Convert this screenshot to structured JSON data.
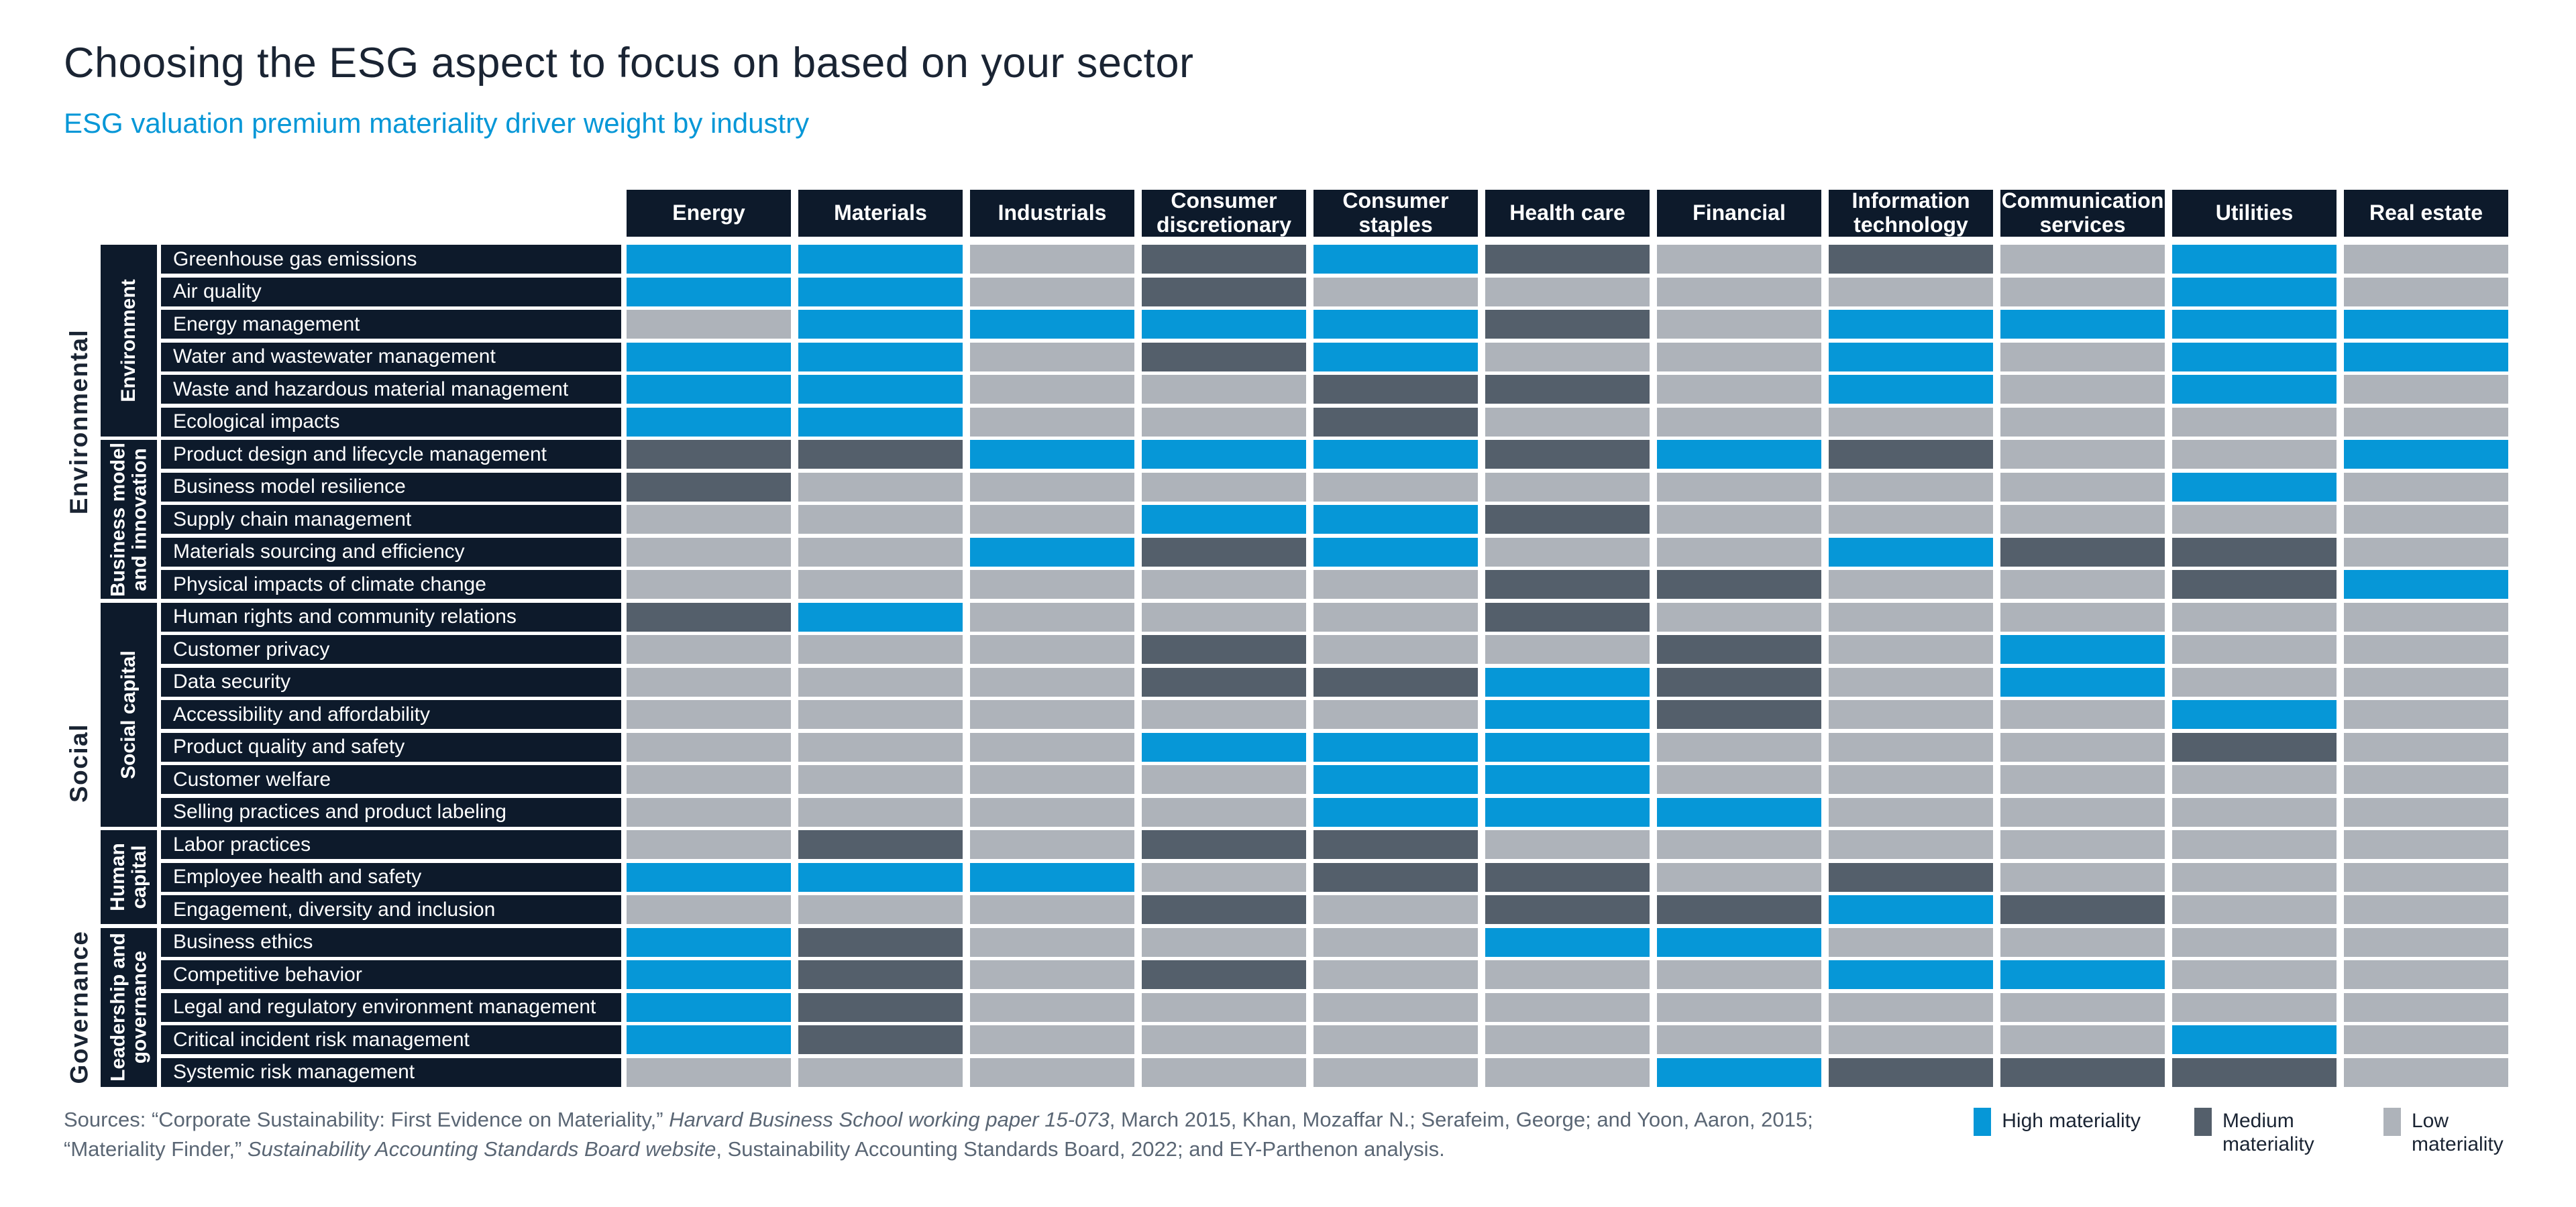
{
  "header": {
    "title": "Choosing the ESG aspect to focus on based on your sector",
    "subtitle": "ESG valuation premium materiality driver weight by industry"
  },
  "colors": {
    "high_materiality": "#0697d7",
    "medium_materiality": "#545f6b",
    "low_materiality": "#aeb3ba",
    "header_navy": "#0d1a2b",
    "title_text": "#1a2433",
    "subtitle_text": "#0697d7",
    "source_text": "#5a6674"
  },
  "legend": [
    {
      "label": "High materiality",
      "level": "high"
    },
    {
      "label": "Medium materiality",
      "level": "medium"
    },
    {
      "label": "Low materiality",
      "level": "low"
    }
  ],
  "sources": {
    "segments": [
      {
        "text": "Sources: “Corporate Sustainability: First Evidence on Materiality,” "
      },
      {
        "text": "Harvard Business School working paper 15-073",
        "italic": true
      },
      {
        "text": ", March 2015, Khan, Mozaffar N.; Serafeim, George; and Yoon, Aaron, 2015; “Materiality Finder,” "
      },
      {
        "text": "Sustainability Accounting Standards Board website",
        "italic": true
      },
      {
        "text": ", Sustainability Accounting Standards Board, 2022; and EY-Parthenon analysis."
      }
    ]
  },
  "chart_data": {
    "type": "heatmap",
    "title": "Choosing the ESG aspect to focus on based on your sector",
    "subtitle": "ESG valuation premium materiality driver weight by industry",
    "legend_levels": {
      "H": "High materiality",
      "M": "Medium materiality",
      "L": "Low materiality"
    },
    "legend_position": "bottom-right",
    "columns": [
      "Energy",
      "Materials",
      "Industrials",
      "Consumer discretionary",
      "Consumer staples",
      "Health care",
      "Financial",
      "Information technology",
      "Communication services",
      "Utilities",
      "Real estate"
    ],
    "pillars": [
      {
        "label": "Environmental",
        "groups": [
          {
            "label": "Environment",
            "rows": [
              {
                "label": "Greenhouse gas emissions",
                "values": [
                  "H",
                  "H",
                  "L",
                  "M",
                  "H",
                  "M",
                  "L",
                  "M",
                  "L",
                  "H",
                  "L"
                ]
              },
              {
                "label": "Air quality",
                "values": [
                  "H",
                  "H",
                  "L",
                  "M",
                  "L",
                  "L",
                  "L",
                  "L",
                  "L",
                  "H",
                  "L"
                ]
              },
              {
                "label": "Energy management",
                "values": [
                  "L",
                  "H",
                  "H",
                  "H",
                  "H",
                  "M",
                  "L",
                  "H",
                  "H",
                  "H",
                  "H"
                ]
              },
              {
                "label": "Water and wastewater management",
                "values": [
                  "H",
                  "H",
                  "L",
                  "M",
                  "H",
                  "L",
                  "L",
                  "H",
                  "L",
                  "H",
                  "H"
                ]
              },
              {
                "label": "Waste and hazardous material management",
                "values": [
                  "H",
                  "H",
                  "L",
                  "L",
                  "M",
                  "M",
                  "L",
                  "H",
                  "L",
                  "H",
                  "L"
                ]
              },
              {
                "label": "Ecological impacts",
                "values": [
                  "H",
                  "H",
                  "L",
                  "L",
                  "M",
                  "L",
                  "L",
                  "L",
                  "L",
                  "L",
                  "L"
                ]
              }
            ]
          },
          {
            "label": "Business model and innovation",
            "rows": [
              {
                "label": "Product design and lifecycle management",
                "values": [
                  "M",
                  "M",
                  "H",
                  "H",
                  "H",
                  "M",
                  "H",
                  "M",
                  "L",
                  "L",
                  "H"
                ]
              },
              {
                "label": "Business model resilience",
                "values": [
                  "M",
                  "L",
                  "L",
                  "L",
                  "L",
                  "L",
                  "L",
                  "L",
                  "L",
                  "H",
                  "L"
                ]
              },
              {
                "label": "Supply chain management",
                "values": [
                  "L",
                  "L",
                  "L",
                  "H",
                  "H",
                  "M",
                  "L",
                  "L",
                  "L",
                  "L",
                  "L"
                ]
              },
              {
                "label": "Materials sourcing and efficiency",
                "values": [
                  "L",
                  "L",
                  "H",
                  "M",
                  "H",
                  "L",
                  "L",
                  "H",
                  "M",
                  "M",
                  "L"
                ]
              },
              {
                "label": "Physical impacts of climate change",
                "values": [
                  "L",
                  "L",
                  "L",
                  "L",
                  "L",
                  "M",
                  "M",
                  "L",
                  "L",
                  "M",
                  "H"
                ]
              }
            ]
          }
        ]
      },
      {
        "label": "Social",
        "groups": [
          {
            "label": "Social capital",
            "rows": [
              {
                "label": "Human rights and community relations",
                "values": [
                  "M",
                  "H",
                  "L",
                  "L",
                  "L",
                  "M",
                  "L",
                  "L",
                  "L",
                  "L",
                  "L"
                ]
              },
              {
                "label": "Customer privacy",
                "values": [
                  "L",
                  "L",
                  "L",
                  "M",
                  "L",
                  "L",
                  "M",
                  "L",
                  "H",
                  "L",
                  "L"
                ]
              },
              {
                "label": "Data security",
                "values": [
                  "L",
                  "L",
                  "L",
                  "M",
                  "M",
                  "H",
                  "M",
                  "L",
                  "H",
                  "L",
                  "L"
                ]
              },
              {
                "label": "Accessibility and affordability",
                "values": [
                  "L",
                  "L",
                  "L",
                  "L",
                  "L",
                  "H",
                  "M",
                  "L",
                  "L",
                  "H",
                  "L"
                ]
              },
              {
                "label": "Product quality and safety",
                "values": [
                  "L",
                  "L",
                  "L",
                  "H",
                  "H",
                  "H",
                  "L",
                  "L",
                  "L",
                  "M",
                  "L"
                ]
              },
              {
                "label": "Customer welfare",
                "values": [
                  "L",
                  "L",
                  "L",
                  "L",
                  "H",
                  "H",
                  "L",
                  "L",
                  "L",
                  "L",
                  "L"
                ]
              },
              {
                "label": "Selling practices and product labeling",
                "values": [
                  "L",
                  "L",
                  "L",
                  "L",
                  "H",
                  "H",
                  "H",
                  "L",
                  "L",
                  "L",
                  "L"
                ]
              }
            ]
          },
          {
            "label": "Human capital",
            "rows": [
              {
                "label": "Labor practices",
                "values": [
                  "L",
                  "M",
                  "L",
                  "M",
                  "M",
                  "L",
                  "L",
                  "L",
                  "L",
                  "L",
                  "L"
                ]
              },
              {
                "label": "Employee health and safety",
                "values": [
                  "H",
                  "H",
                  "H",
                  "L",
                  "M",
                  "M",
                  "L",
                  "M",
                  "L",
                  "L",
                  "L"
                ]
              },
              {
                "label": "Engagement, diversity and inclusion",
                "values": [
                  "L",
                  "L",
                  "L",
                  "M",
                  "L",
                  "M",
                  "M",
                  "H",
                  "M",
                  "L",
                  "L"
                ]
              }
            ]
          }
        ]
      },
      {
        "label": "Governance",
        "groups": [
          {
            "label": "Leadership and governance",
            "rows": [
              {
                "label": "Business ethics",
                "values": [
                  "H",
                  "M",
                  "L",
                  "L",
                  "L",
                  "H",
                  "H",
                  "L",
                  "L",
                  "L",
                  "L"
                ]
              },
              {
                "label": "Competitive behavior",
                "values": [
                  "H",
                  "M",
                  "L",
                  "M",
                  "L",
                  "L",
                  "L",
                  "H",
                  "H",
                  "L",
                  "L"
                ]
              },
              {
                "label": "Legal and regulatory environment management",
                "values": [
                  "H",
                  "M",
                  "L",
                  "L",
                  "L",
                  "L",
                  "L",
                  "L",
                  "L",
                  "L",
                  "L"
                ]
              },
              {
                "label": "Critical incident risk management",
                "values": [
                  "H",
                  "M",
                  "L",
                  "L",
                  "L",
                  "L",
                  "L",
                  "L",
                  "L",
                  "H",
                  "L"
                ]
              },
              {
                "label": "Systemic risk management",
                "values": [
                  "L",
                  "L",
                  "L",
                  "L",
                  "L",
                  "L",
                  "H",
                  "M",
                  "M",
                  "M",
                  "L"
                ]
              }
            ]
          }
        ]
      }
    ]
  }
}
